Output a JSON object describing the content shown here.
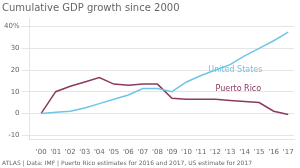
{
  "chart_data": {
    "type": "line",
    "title": "Cumulative GDP growth since 2000",
    "footer": "ATLAS | Data: IMF | Puerto Rico estimates for 2016 and 2017, US estimate for 2017",
    "x": [
      2000,
      2001,
      2002,
      2003,
      2004,
      2005,
      2006,
      2007,
      2008,
      2009,
      2010,
      2011,
      2012,
      2013,
      2014,
      2015,
      2016,
      2017
    ],
    "series": [
      {
        "name": "United States",
        "color": "#6ec6e6",
        "values": [
          0,
          0.5,
          1.0,
          2.5,
          4.5,
          6.5,
          8.5,
          11.5,
          11.5,
          10.0,
          14.5,
          17.5,
          20.0,
          22.5,
          26.5,
          30.0,
          33.5,
          37.5
        ]
      },
      {
        "name": "Puerto Rico",
        "color": "#8b3a62",
        "values": [
          0,
          10.0,
          12.5,
          14.5,
          16.5,
          13.5,
          13.0,
          13.5,
          13.5,
          7.0,
          6.5,
          6.5,
          6.5,
          6.0,
          5.5,
          5.0,
          1.0,
          -0.5
        ]
      }
    ],
    "annotations": [
      {
        "text": "United States",
        "x": 2011.5,
        "y": 20.0,
        "color": "#6ec6e6"
      },
      {
        "text": "Puerto Rico",
        "x": 2012.0,
        "y": 11.5,
        "color": "#8b3a62"
      }
    ],
    "xlim": [
      1999.2,
      2017.4
    ],
    "xticks": [
      {
        "value": 2000,
        "label": "'00"
      },
      {
        "value": 2001,
        "label": "'01"
      },
      {
        "value": 2002,
        "label": "'02"
      },
      {
        "value": 2003,
        "label": "'03"
      },
      {
        "value": 2004,
        "label": "'04"
      },
      {
        "value": 2005,
        "label": "'05"
      },
      {
        "value": 2006,
        "label": "'06"
      },
      {
        "value": 2007,
        "label": "'07"
      },
      {
        "value": 2008,
        "label": "'08"
      },
      {
        "value": 2009,
        "label": "'09"
      },
      {
        "value": 2010,
        "label": "'10"
      },
      {
        "value": 2011,
        "label": "'11"
      },
      {
        "value": 2012,
        "label": "'12"
      },
      {
        "value": 2013,
        "label": "'13"
      },
      {
        "value": 2014,
        "label": "'14"
      },
      {
        "value": 2015,
        "label": "'15"
      },
      {
        "value": 2016,
        "label": "'16"
      },
      {
        "value": 2017,
        "label": "'17"
      }
    ],
    "ylim": [
      -12,
      44
    ],
    "yticks": [
      -10,
      0,
      10,
      20,
      30,
      {
        "value": 40,
        "label": "40%"
      }
    ],
    "grid": "y"
  }
}
